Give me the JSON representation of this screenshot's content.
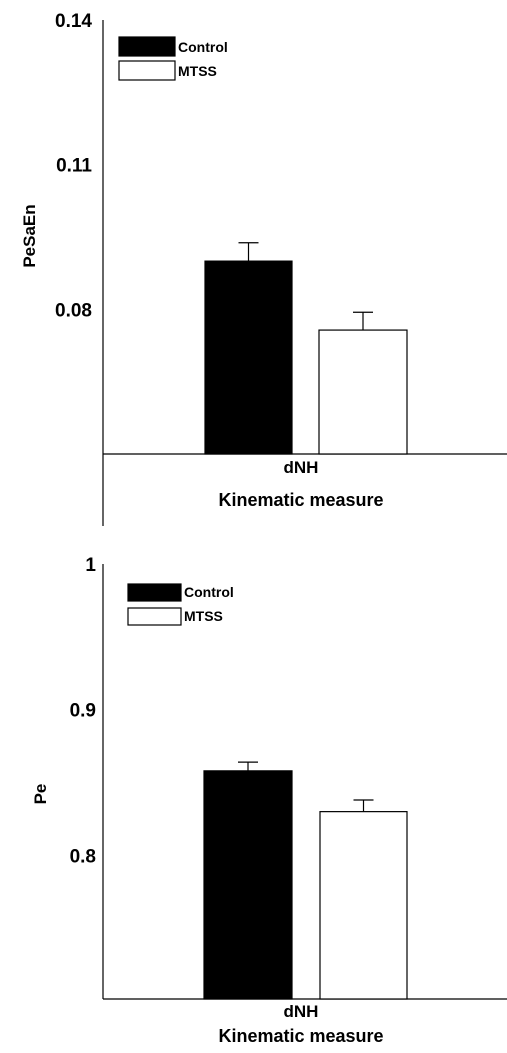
{
  "chart_data": [
    {
      "type": "bar",
      "categories": [
        "dNH"
      ],
      "xlabel": "Kinematic measure",
      "ylabel": "PeSaEn",
      "ylim": [
        0.05,
        0.14
      ],
      "yticks": [
        "0.08",
        "0.11",
        "0.14"
      ],
      "yticks_values": [
        0.08,
        0.11,
        0.14
      ],
      "series": [
        {
          "name": "Control",
          "values": [
            0.09
          ],
          "error": [
            0.0038
          ],
          "color": "#000000"
        },
        {
          "name": "MTSS",
          "values": [
            0.0757
          ],
          "error": [
            0.0037
          ],
          "color": "#ffffff"
        }
      ],
      "legend": "top-left",
      "grid": false
    },
    {
      "type": "bar",
      "categories": [
        "dNH"
      ],
      "xlabel": "Kinematic measure",
      "ylabel": "Pe",
      "ylim": [
        0.7,
        1.0
      ],
      "yticks": [
        "0.8",
        "0.9",
        "1"
      ],
      "yticks_values": [
        0.8,
        0.9,
        1.0
      ],
      "series": [
        {
          "name": "Control",
          "values": [
            0.858
          ],
          "error": [
            0.006
          ],
          "color": "#000000"
        },
        {
          "name": "MTSS",
          "values": [
            0.83
          ],
          "error": [
            0.008
          ],
          "color": "#ffffff"
        }
      ],
      "legend": "top-left",
      "grid": false
    }
  ]
}
